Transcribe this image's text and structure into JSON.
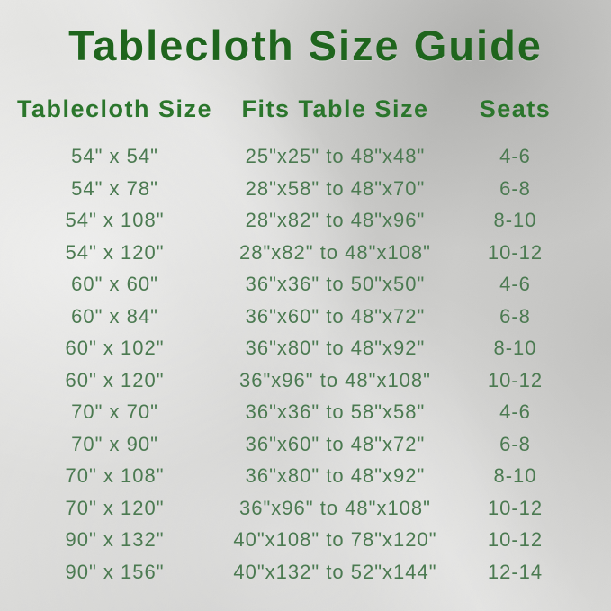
{
  "title": "Tablecloth Size Guide",
  "table": {
    "headers": [
      "Tablecloth Size",
      "Fits Table Size",
      "Seats"
    ],
    "rows": [
      [
        "54\" x 54\"",
        "25\"x25\" to 48\"x48\"",
        "4-6"
      ],
      [
        "54\" x 78\"",
        "28\"x58\" to 48\"x70\"",
        "6-8"
      ],
      [
        "54\" x 108\"",
        "28\"x82\" to 48\"x96\"",
        "8-10"
      ],
      [
        "54\" x 120\"",
        "28\"x82\" to 48\"x108\"",
        "10-12"
      ],
      [
        "60\" x 60\"",
        "36\"x36\" to 50\"x50\"",
        "4-6"
      ],
      [
        "60\" x 84\"",
        "36\"x60\" to 48\"x72\"",
        "6-8"
      ],
      [
        "60\" x 102\"",
        "36\"x80\" to 48\"x92\"",
        "8-10"
      ],
      [
        "60\" x 120\"",
        "36\"x96\" to 48\"x108\"",
        "10-12"
      ],
      [
        "70\" x 70\"",
        "36\"x36\" to 58\"x58\"",
        "4-6"
      ],
      [
        "70\" x 90\"",
        "36\"x60\" to 48\"x72\"",
        "6-8"
      ],
      [
        "70\" x 108\"",
        "36\"x80\" to 48\"x92\"",
        "8-10"
      ],
      [
        "70\" x 120\"",
        "36\"x96\" to 48\"x108\"",
        "10-12"
      ],
      [
        "90\" x 132\"",
        "40\"x108\" to 78\"x120\"",
        "10-12"
      ],
      [
        "90\" x 156\"",
        "40\"x132\" to 52\"x144\"",
        "12-14"
      ]
    ]
  },
  "colors": {
    "title_green": "#1f651d",
    "header_green": "#2b762c",
    "row_green": "#4b7a51"
  }
}
